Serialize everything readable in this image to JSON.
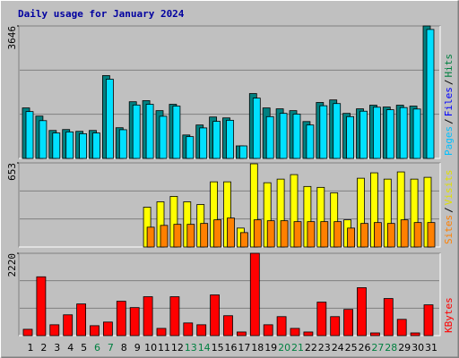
{
  "chart_data": {
    "type": "bar",
    "title": "Daily usage for January 2024",
    "categories": [
      "1",
      "2",
      "3",
      "4",
      "5",
      "6",
      "7",
      "8",
      "9",
      "10",
      "11",
      "12",
      "13",
      "14",
      "15",
      "16",
      "17",
      "18",
      "19",
      "20",
      "21",
      "22",
      "23",
      "24",
      "25",
      "26",
      "27",
      "28",
      "29",
      "30",
      "31"
    ],
    "category_colors": [
      "#000",
      "#000",
      "#000",
      "#000",
      "#000",
      "#008040",
      "#008040",
      "#000",
      "#000",
      "#000",
      "#000",
      "#000",
      "#008040",
      "#008040",
      "#000",
      "#000",
      "#000",
      "#000",
      "#000",
      "#008040",
      "#008040",
      "#000",
      "#000",
      "#000",
      "#000",
      "#000",
      "#008040",
      "#008040",
      "#000",
      "#000",
      "#000"
    ],
    "panels": [
      {
        "ylim": [
          0,
          3646
        ],
        "yticks": [
          3646
        ],
        "axis_label": [
          {
            "text": "Pages",
            "color": "#00c0ff"
          },
          {
            "text": "/",
            "color": "#000000"
          },
          {
            "text": "Files",
            "color": "#0000ff"
          },
          {
            "text": "/",
            "color": "#000000"
          },
          {
            "text": "Hits",
            "color": "#008040"
          }
        ],
        "series": [
          {
            "name": "Hits",
            "color": "#008080",
            "values": [
              1390,
              1165,
              770,
              795,
              745,
              770,
              2280,
              845,
              1560,
              1590,
              1315,
              1490,
              645,
              920,
              1140,
              1115,
              345,
              1785,
              1390,
              1365,
              1315,
              1015,
              1540,
              1610,
              1240,
              1365,
              1465,
              1415,
              1465,
              1440,
              3646
            ]
          },
          {
            "name": "Files",
            "color": "#00e0ff",
            "values": [
              1290,
              1040,
              700,
              730,
              680,
              700,
              2180,
              790,
              1470,
              1490,
              1160,
              1440,
              600,
              840,
              1020,
              1050,
              345,
              1660,
              1150,
              1240,
              1220,
              920,
              1450,
              1510,
              1150,
              1300,
              1410,
              1340,
              1400,
              1360,
              3550
            ]
          }
        ]
      },
      {
        "ylim": [
          0,
          653
        ],
        "yticks": [
          653
        ],
        "axis_label": [
          {
            "text": "Sites",
            "color": "#ff8000"
          },
          {
            "text": "/",
            "color": "#000000"
          },
          {
            "text": "Visits",
            "color": "#e0e000"
          }
        ],
        "series": [
          {
            "name": "Visits",
            "color": "#ffff00",
            "values": [
              0,
              0,
              0,
              0,
              0,
              0,
              0,
              0,
              0,
              309,
              351,
              393,
              351,
              330,
              506,
              506,
              147,
              646,
              499,
              527,
              562,
              470,
              463,
              421,
              211,
              534,
              576,
              527,
              583,
              527,
              541
            ]
          },
          {
            "name": "Sites",
            "color": "#ff8000",
            "values": [
              0,
              0,
              0,
              0,
              0,
              0,
              0,
              0,
              0,
              154,
              168,
              176,
              176,
              183,
              211,
              225,
              112,
              211,
              204,
              204,
              197,
              197,
              197,
              197,
              147,
              183,
              190,
              183,
              211,
              190,
              190
            ]
          }
        ]
      },
      {
        "ylim": [
          0,
          2220
        ],
        "yticks": [
          2220
        ],
        "axis_label": [
          {
            "text": "KBytes",
            "color": "#ff0000"
          }
        ],
        "series": [
          {
            "name": "KBytes",
            "color": "#ff0000",
            "values": [
              171,
              1586,
              293,
              561,
              854,
              268,
              366,
              927,
              756,
              1049,
              195,
              1049,
              342,
              293,
              1098,
              537,
              98,
              2220,
              293,
              512,
              195,
              98,
              903,
              512,
              707,
              1293,
              73,
              1000,
              439,
              73,
              830
            ]
          }
        ]
      }
    ]
  }
}
